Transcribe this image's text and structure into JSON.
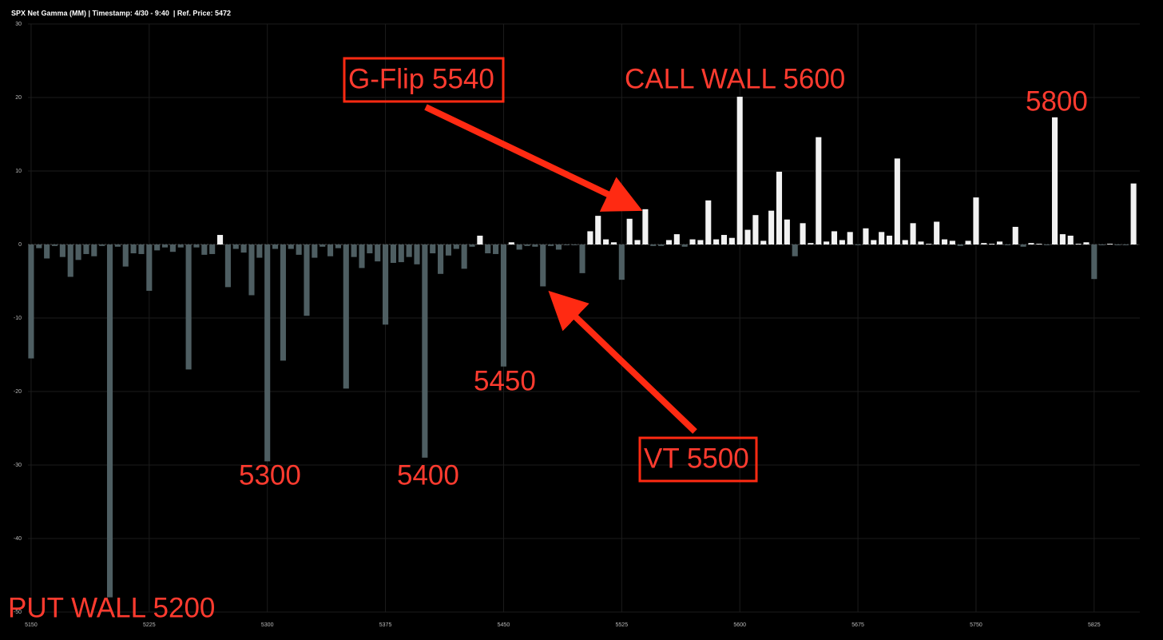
{
  "chart_data": {
    "type": "bar",
    "title": "SPX Net Gamma (MM) | Timestamp: 4/30 - 9:40  | Ref. Price: 5472",
    "x": [
      5150,
      5155,
      5160,
      5165,
      5170,
      5175,
      5180,
      5185,
      5190,
      5195,
      5200,
      5205,
      5210,
      5215,
      5220,
      5225,
      5230,
      5235,
      5240,
      5245,
      5250,
      5255,
      5260,
      5265,
      5270,
      5275,
      5280,
      5285,
      5290,
      5295,
      5300,
      5305,
      5310,
      5315,
      5320,
      5325,
      5330,
      5335,
      5340,
      5345,
      5350,
      5355,
      5360,
      5365,
      5370,
      5375,
      5380,
      5385,
      5390,
      5395,
      5400,
      5405,
      5410,
      5415,
      5420,
      5425,
      5430,
      5435,
      5440,
      5445,
      5450,
      5455,
      5460,
      5465,
      5470,
      5475,
      5480,
      5485,
      5490,
      5495,
      5500,
      5505,
      5510,
      5515,
      5520,
      5525,
      5530,
      5535,
      5540,
      5545,
      5550,
      5555,
      5560,
      5565,
      5570,
      5575,
      5580,
      5585,
      5590,
      5595,
      5600,
      5605,
      5610,
      5615,
      5620,
      5625,
      5630,
      5635,
      5640,
      5645,
      5650,
      5655,
      5660,
      5665,
      5670,
      5675,
      5680,
      5685,
      5690,
      5695,
      5700,
      5705,
      5710,
      5715,
      5720,
      5725,
      5730,
      5735,
      5740,
      5745,
      5750,
      5755,
      5760,
      5765,
      5770,
      5775,
      5780,
      5785,
      5790,
      5795,
      5800,
      5805,
      5810,
      5815,
      5820,
      5825,
      5830,
      5835,
      5840,
      5845,
      5850
    ],
    "values": [
      -15.5,
      -0.5,
      -1.9,
      -0.2,
      -1.7,
      -4.4,
      -2.1,
      -1.3,
      -1.6,
      -0.2,
      -48,
      -0.3,
      -3,
      -1.2,
      -1.3,
      -6.3,
      -0.8,
      -0.4,
      -1,
      -0.4,
      -17,
      -0.4,
      -1.4,
      -1.3,
      1.3,
      -5.8,
      -0.6,
      -1.1,
      -6.9,
      -1.8,
      -29.5,
      -0.6,
      -15.8,
      -0.6,
      -1.4,
      -9.7,
      -1.8,
      -0.3,
      -1.6,
      -0.5,
      -19.6,
      -1.7,
      -3.2,
      -1.2,
      -2.3,
      -10.9,
      -2.5,
      -2.4,
      -1.7,
      -2.7,
      -29,
      -1.2,
      -4,
      -1.5,
      -0.6,
      -3.3,
      -0.3,
      1.2,
      -1.2,
      -1.3,
      -16.6,
      0.3,
      -0.7,
      -0.2,
      -0.3,
      -5.7,
      -0.2,
      -0.7,
      -0.1,
      -0.1,
      -3.9,
      1.8,
      3.9,
      0.7,
      0.3,
      -4.8,
      3.5,
      0.6,
      4.8,
      -0.2,
      -0.2,
      0.6,
      1.4,
      -0.3,
      0.7,
      0.6,
      6,
      0.7,
      1.3,
      0.9,
      20.1,
      2,
      4,
      0.5,
      4.6,
      9.9,
      3.4,
      -1.6,
      2.9,
      0.2,
      14.6,
      0.4,
      1.8,
      0.6,
      1.7,
      -0.1,
      2.2,
      0.6,
      1.7,
      1.2,
      11.7,
      0.6,
      2.9,
      0.4,
      0.1,
      3.1,
      0.7,
      0.5,
      -0.2,
      0.5,
      6.4,
      0.2,
      0.1,
      0.4,
      -0.1,
      2.4,
      -0.3,
      0.2,
      0.1,
      -0.1,
      17.3,
      1.4,
      1.2,
      0.1,
      0.3,
      -4.7,
      -0.1,
      0.1,
      -0.1,
      -0.1,
      8.3
    ],
    "positive_color": "#f2f2f2",
    "negative_color": "#4e5e62",
    "xlim": [
      5148,
      5854
    ],
    "xticks": [
      5150,
      5225,
      5300,
      5375,
      5450,
      5525,
      5600,
      5675,
      5750,
      5825
    ],
    "ylim": [
      -50,
      30
    ],
    "yticks": [
      -50,
      -40,
      -30,
      -20,
      -10,
      0,
      10,
      20,
      30
    ],
    "grid": true,
    "annotations": [
      "G-Flip 5540",
      "CALL WALL 5600",
      "5800",
      "5450",
      "5300",
      "5400",
      "VT 5500",
      "PUT WALL 5200"
    ]
  }
}
